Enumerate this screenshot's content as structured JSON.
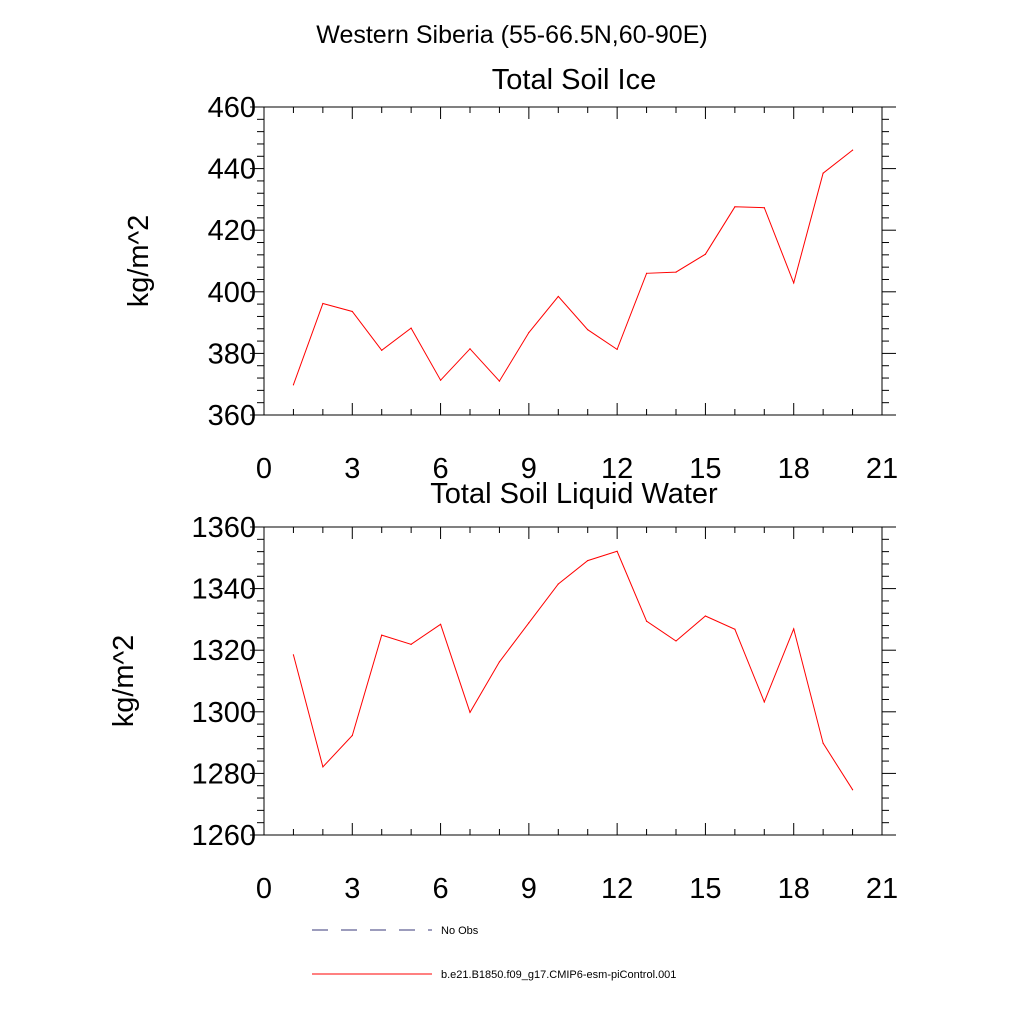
{
  "figure": {
    "title": "Western Siberia (55-66.5N,60-90E)"
  },
  "chart_data": [
    {
      "type": "line",
      "title": "Total Soil Ice",
      "xlabel": "",
      "ylabel": "kg/m^2",
      "xlim": [
        0,
        21
      ],
      "ylim": [
        360,
        460
      ],
      "xticks": [
        0,
        3,
        6,
        9,
        12,
        15,
        18,
        21
      ],
      "yticks": [
        360,
        380,
        400,
        420,
        440,
        460
      ],
      "grid": false,
      "series": [
        {
          "name": "b.e21.B1850.f09_g17.CMIP6-esm-piControl.001",
          "color": "#ff0000",
          "x": [
            1,
            2,
            3,
            4,
            5,
            6,
            7,
            8,
            9,
            10,
            11,
            12,
            13,
            14,
            15,
            16,
            17,
            18,
            19,
            20
          ],
          "values": [
            369.8,
            396.2,
            393.6,
            381.0,
            388.2,
            371.3,
            381.5,
            371.0,
            386.8,
            398.5,
            387.7,
            381.3,
            406.0,
            406.4,
            412.2,
            427.6,
            427.3,
            402.9,
            438.5,
            446.0
          ]
        }
      ]
    },
    {
      "type": "line",
      "title": "Total Soil Liquid Water",
      "xlabel": "",
      "ylabel": "kg/m^2",
      "xlim": [
        0,
        21
      ],
      "ylim": [
        1260,
        1360
      ],
      "xticks": [
        0,
        3,
        6,
        9,
        12,
        15,
        18,
        21
      ],
      "yticks": [
        1260,
        1280,
        1300,
        1320,
        1340,
        1360
      ],
      "grid": false,
      "series": [
        {
          "name": "b.e21.B1850.f09_g17.CMIP6-esm-piControl.001",
          "color": "#ff0000",
          "x": [
            1,
            2,
            3,
            4,
            5,
            6,
            7,
            8,
            9,
            10,
            11,
            12,
            13,
            14,
            15,
            16,
            17,
            18,
            19,
            20
          ],
          "values": [
            1318.5,
            1282.1,
            1292.3,
            1324.9,
            1321.9,
            1328.4,
            1299.8,
            1316.2,
            1328.9,
            1341.5,
            1349.1,
            1352.1,
            1329.4,
            1323.0,
            1331.1,
            1326.8,
            1303.2,
            1326.9,
            1289.8,
            1274.7
          ]
        }
      ]
    }
  ],
  "legend": {
    "placement": "bottom-left",
    "items": [
      {
        "label": "No Obs",
        "color": "#3a3a7a",
        "style": "dashed"
      },
      {
        "label": "b.e21.B1850.f09_g17.CMIP6-esm-piControl.001",
        "color": "#ff0000",
        "style": "solid"
      }
    ]
  }
}
